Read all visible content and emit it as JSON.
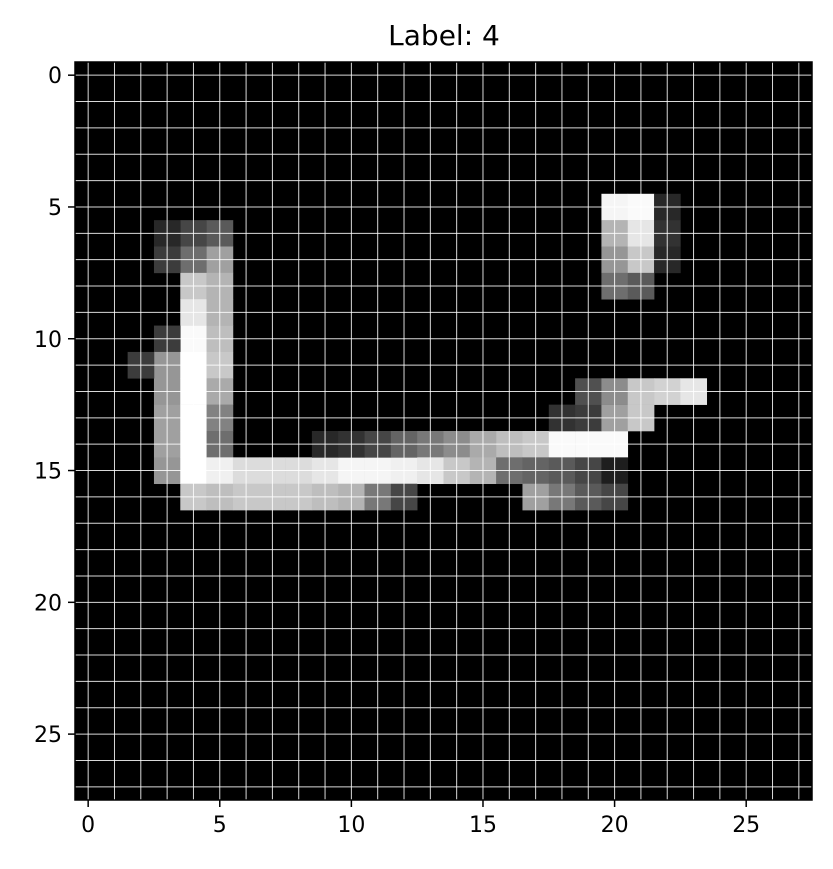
{
  "chart_data": {
    "type": "heatmap",
    "title": "Label: 4",
    "xlabel": "",
    "ylabel": "",
    "colormap": "gray",
    "grid": true,
    "grid_color": "#ffffff",
    "xlim": [
      -0.5,
      27.5
    ],
    "ylim": [
      27.5,
      -0.5
    ],
    "x_ticks": [
      0,
      5,
      10,
      15,
      20,
      25
    ],
    "y_ticks": [
      0,
      5,
      10,
      15,
      20,
      25
    ],
    "x_tick_labels": [
      "0",
      "5",
      "10",
      "15",
      "20",
      "25"
    ],
    "y_tick_labels": [
      "0",
      "5",
      "10",
      "15",
      "20",
      "25"
    ],
    "value_range": [
      0,
      255
    ],
    "rows": 28,
    "cols": 28,
    "pixels": [
      [
        5,
        20,
        245
      ],
      [
        6,
        20,
        180
      ],
      [
        7,
        20,
        150
      ],
      [
        8,
        20,
        110
      ],
      [
        5,
        21,
        250
      ],
      [
        6,
        21,
        230
      ],
      [
        7,
        21,
        200
      ],
      [
        8,
        21,
        90
      ],
      [
        5,
        22,
        40
      ],
      [
        6,
        22,
        50
      ],
      [
        7,
        22,
        40
      ],
      [
        6,
        4,
        70
      ],
      [
        7,
        4,
        110
      ],
      [
        8,
        4,
        200
      ],
      [
        9,
        4,
        230
      ],
      [
        10,
        4,
        250
      ],
      [
        6,
        5,
        90
      ],
      [
        7,
        5,
        160
      ],
      [
        8,
        5,
        180
      ],
      [
        9,
        5,
        180
      ],
      [
        10,
        5,
        190
      ],
      [
        6,
        3,
        40
      ],
      [
        7,
        3,
        60
      ],
      [
        10,
        3,
        60
      ],
      [
        11,
        3,
        150
      ],
      [
        12,
        3,
        150
      ],
      [
        13,
        3,
        160
      ],
      [
        14,
        3,
        160
      ],
      [
        15,
        3,
        150
      ],
      [
        11,
        4,
        255
      ],
      [
        12,
        4,
        255
      ],
      [
        13,
        4,
        255
      ],
      [
        14,
        4,
        255
      ],
      [
        15,
        4,
        255
      ],
      [
        16,
        4,
        200
      ],
      [
        11,
        5,
        200
      ],
      [
        12,
        5,
        170
      ],
      [
        13,
        5,
        130
      ],
      [
        14,
        5,
        110
      ],
      [
        15,
        5,
        240
      ],
      [
        16,
        5,
        190
      ],
      [
        11,
        2,
        60
      ],
      [
        15,
        6,
        220
      ],
      [
        16,
        6,
        200
      ],
      [
        15,
        7,
        220
      ],
      [
        16,
        7,
        200
      ],
      [
        15,
        8,
        220
      ],
      [
        16,
        8,
        200
      ],
      [
        15,
        9,
        230
      ],
      [
        16,
        9,
        190
      ],
      [
        15,
        10,
        245
      ],
      [
        16,
        10,
        180
      ],
      [
        15,
        11,
        245
      ],
      [
        16,
        11,
        120
      ],
      [
        15,
        12,
        240
      ],
      [
        16,
        12,
        70
      ],
      [
        14,
        9,
        40
      ],
      [
        14,
        10,
        50
      ],
      [
        14,
        11,
        70
      ],
      [
        14,
        12,
        100
      ],
      [
        14,
        13,
        120
      ],
      [
        14,
        14,
        140
      ],
      [
        14,
        15,
        170
      ],
      [
        14,
        16,
        190
      ],
      [
        14,
        17,
        200
      ],
      [
        14,
        18,
        250
      ],
      [
        14,
        19,
        250
      ],
      [
        14,
        20,
        250
      ],
      [
        15,
        13,
        230
      ],
      [
        15,
        14,
        200
      ],
      [
        15,
        15,
        180
      ],
      [
        15,
        16,
        110
      ],
      [
        15,
        17,
        100
      ],
      [
        15,
        18,
        90
      ],
      [
        15,
        19,
        70
      ],
      [
        15,
        20,
        30
      ],
      [
        13,
        18,
        50
      ],
      [
        13,
        19,
        60
      ],
      [
        13,
        20,
        160
      ],
      [
        13,
        21,
        200
      ],
      [
        12,
        19,
        80
      ],
      [
        12,
        20,
        140
      ],
      [
        12,
        21,
        200
      ],
      [
        12,
        22,
        210
      ],
      [
        12,
        23,
        230
      ],
      [
        16,
        17,
        160
      ],
      [
        16,
        18,
        120
      ],
      [
        16,
        19,
        90
      ],
      [
        16,
        20,
        70
      ]
    ]
  }
}
